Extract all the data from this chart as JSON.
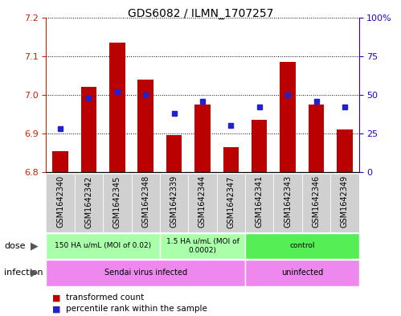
{
  "title": "GDS6082 / ILMN_1707257",
  "samples": [
    "GSM1642340",
    "GSM1642342",
    "GSM1642345",
    "GSM1642348",
    "GSM1642339",
    "GSM1642344",
    "GSM1642347",
    "GSM1642341",
    "GSM1642343",
    "GSM1642346",
    "GSM1642349"
  ],
  "bar_values": [
    6.855,
    7.02,
    7.135,
    7.04,
    6.895,
    6.975,
    6.865,
    6.935,
    7.085,
    6.975,
    6.91
  ],
  "percentile_values": [
    28,
    48,
    52,
    50,
    38,
    46,
    30,
    42,
    50,
    46,
    42
  ],
  "ylim_left": [
    6.8,
    7.2
  ],
  "ylim_right": [
    0,
    100
  ],
  "yticks_left": [
    6.8,
    6.9,
    7.0,
    7.1,
    7.2
  ],
  "yticks_right": [
    0,
    25,
    50,
    75,
    100
  ],
  "bar_color": "#bb0000",
  "marker_color": "#2222cc",
  "background_color": "#ffffff",
  "dose_boundaries": [
    {
      "label": "150 HA u/mL (MOI of 0.02)",
      "start": 0,
      "end": 4,
      "color": "#aaffaa"
    },
    {
      "label": "1.5 HA u/mL (MOI of\n0.0002)",
      "start": 4,
      "end": 7,
      "color": "#aaffaa"
    },
    {
      "label": "control",
      "start": 7,
      "end": 11,
      "color": "#55ee55"
    }
  ],
  "infection_boundaries": [
    {
      "label": "Sendai virus infected",
      "start": 0,
      "end": 7,
      "color": "#ee88ee"
    },
    {
      "label": "uninfected",
      "start": 7,
      "end": 11,
      "color": "#ee88ee"
    }
  ],
  "legend_items": [
    {
      "label": "transformed count",
      "color": "#bb0000"
    },
    {
      "label": "percentile rank within the sample",
      "color": "#2222cc"
    }
  ],
  "dose_label": "dose",
  "infection_label": "infection",
  "bar_width": 0.55,
  "xlabels_bg": "#d0d0d0",
  "left_axis_color": "#cc2200",
  "right_axis_color": "#2200cc"
}
